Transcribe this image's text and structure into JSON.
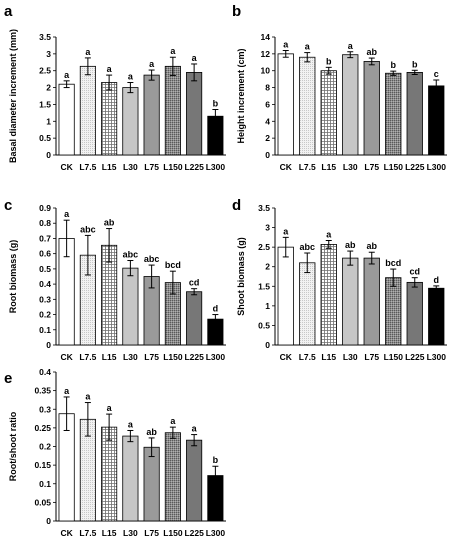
{
  "patterns": [
    "white",
    "dots-fine",
    "grid",
    "lightgray",
    "midgray",
    "dark-dots",
    "darkgray",
    "black"
  ],
  "chart_data": [
    {
      "panel": "a",
      "type": "bar",
      "categories": [
        "CK",
        "L7.5",
        "L15",
        "L30",
        "L75",
        "L150",
        "L225",
        "L300"
      ],
      "values": [
        2.1,
        2.63,
        2.15,
        2.0,
        2.37,
        2.63,
        2.45,
        1.15
      ],
      "errors": [
        0.1,
        0.25,
        0.22,
        0.15,
        0.15,
        0.27,
        0.25,
        0.2
      ],
      "sig": [
        "a",
        "a",
        "a",
        "a",
        "a",
        "a",
        "a",
        "b"
      ],
      "ylabel": "Basal diameter increment (mm)",
      "ylim": [
        0,
        3.5
      ],
      "yticks": [
        "0",
        "0.5",
        "1",
        "1.5",
        "2",
        "2.5",
        "3",
        "3.5"
      ]
    },
    {
      "panel": "b",
      "type": "bar",
      "categories": [
        "CK",
        "L7.5",
        "L15",
        "L30",
        "L75",
        "L150",
        "L225",
        "L300"
      ],
      "values": [
        12.0,
        11.6,
        10.0,
        11.9,
        11.1,
        9.7,
        9.8,
        8.2
      ],
      "errors": [
        0.4,
        0.55,
        0.4,
        0.35,
        0.4,
        0.25,
        0.25,
        0.7
      ],
      "sig": [
        "a",
        "a",
        "b",
        "a",
        "ab",
        "b",
        "b",
        "c"
      ],
      "ylabel": "Height increment (cm)",
      "ylim": [
        0,
        14
      ],
      "yticks": [
        "0",
        "2",
        "4",
        "6",
        "8",
        "10",
        "12",
        "14"
      ]
    },
    {
      "panel": "c",
      "type": "bar",
      "categories": [
        "CK",
        "L7.5",
        "L15",
        "L30",
        "L75",
        "L150",
        "L225",
        "L300"
      ],
      "values": [
        0.7,
        0.59,
        0.655,
        0.505,
        0.45,
        0.41,
        0.35,
        0.17
      ],
      "errors": [
        0.12,
        0.13,
        0.11,
        0.05,
        0.075,
        0.075,
        0.02,
        0.03
      ],
      "sig": [
        "a",
        "abc",
        "ab",
        "abc",
        "abc",
        "bcd",
        "cd",
        "d"
      ],
      "ylabel": "Root biomass (g)",
      "ylim": [
        0,
        0.9
      ],
      "yticks": [
        "0",
        "0.1",
        "0.2",
        "0.3",
        "0.4",
        "0.5",
        "0.6",
        "0.7",
        "0.8",
        "0.9"
      ]
    },
    {
      "panel": "d",
      "type": "bar",
      "categories": [
        "CK",
        "L7.5",
        "L15",
        "L30",
        "L75",
        "L150",
        "L225",
        "L300"
      ],
      "values": [
        2.5,
        2.1,
        2.57,
        2.22,
        2.22,
        1.72,
        1.6,
        1.45
      ],
      "errors": [
        0.25,
        0.25,
        0.1,
        0.18,
        0.15,
        0.22,
        0.12,
        0.06
      ],
      "sig": [
        "a",
        "abc",
        "a",
        "ab",
        "ab",
        "bcd",
        "cd",
        "d"
      ],
      "ylabel": "Shoot biomass (g)",
      "ylim": [
        0,
        3.5
      ],
      "yticks": [
        "0",
        "0.5",
        "1",
        "1.5",
        "2",
        "2.5",
        "3",
        "3.5"
      ]
    },
    {
      "panel": "e",
      "type": "bar",
      "categories": [
        "CK",
        "L7.5",
        "L15",
        "L30",
        "L75",
        "L150",
        "L225",
        "L300"
      ],
      "values": [
        0.288,
        0.273,
        0.252,
        0.228,
        0.198,
        0.237,
        0.217,
        0.122
      ],
      "errors": [
        0.045,
        0.045,
        0.035,
        0.015,
        0.025,
        0.015,
        0.015,
        0.025
      ],
      "sig": [
        "a",
        "a",
        "a",
        "a",
        "ab",
        "a",
        "a",
        "b"
      ],
      "ylabel": "Root/shoot ratio",
      "ylim": [
        0,
        0.4
      ],
      "yticks": [
        "0",
        "0.05",
        "0.1",
        "0.15",
        "0.2",
        "0.25",
        "0.3",
        "0.35",
        "0.4"
      ]
    }
  ]
}
